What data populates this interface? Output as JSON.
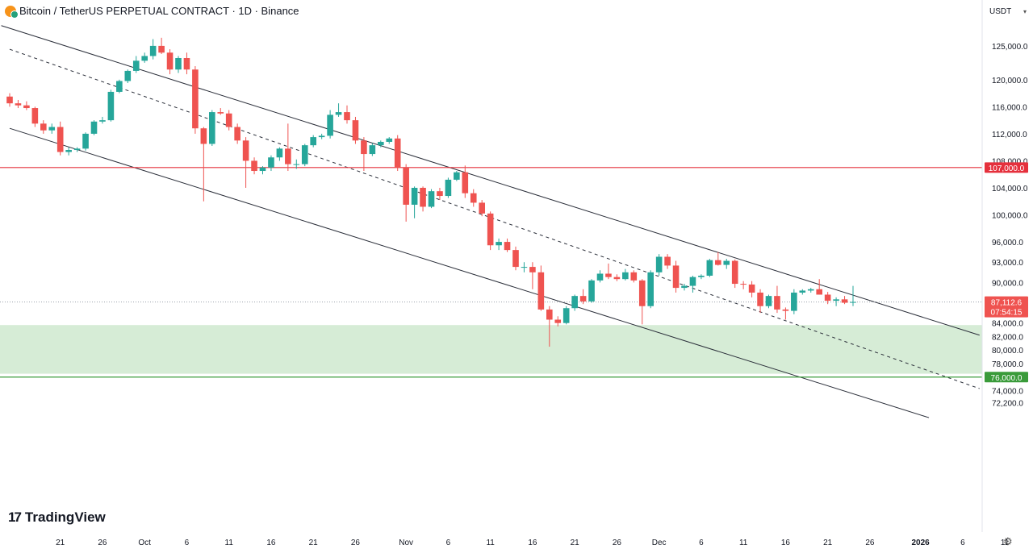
{
  "header": {
    "title": "Bitcoin / TetherUS PERPETUAL CONTRACT · 1D · Binance",
    "currency": "USDT",
    "logo_text": "TradingView"
  },
  "colors": {
    "up": "#26a69a",
    "down": "#ef5350",
    "resistance": "#e5303c",
    "support": "#3a9b3a",
    "zone": "#d6ecd6",
    "channel": "#2a2e39"
  },
  "chart_data": {
    "type": "candlestick",
    "ylim": [
      70000,
      128000
    ],
    "y_ticks": [
      "125,000.0",
      "120,000.0",
      "116,000.0",
      "112,000.0",
      "108,000.0",
      "104,000.0",
      "100,000.0",
      "96,000.0",
      "93,000.0",
      "90,000.0",
      "84,000.0",
      "82,000.0",
      "80,000.0",
      "78,000.0",
      "74,000.0",
      "72,200.0"
    ],
    "x_ticks": [
      "21",
      "26",
      "Oct",
      "6",
      "11",
      "16",
      "21",
      "26",
      "Nov",
      "6",
      "11",
      "16",
      "21",
      "26",
      "Dec",
      "6",
      "11",
      "16",
      "21",
      "26",
      "2026",
      "6",
      "11"
    ],
    "price_labels": {
      "resistance": "107,000.0",
      "support": "76,000.0",
      "last": "87,112.6",
      "countdown": "07:54:15"
    },
    "levels": {
      "resistance": 107000,
      "support": 76000,
      "last": 87112.6,
      "zone": [
        76500,
        83700
      ]
    },
    "channel": {
      "upper": [
        [
          "Sep 14",
          128000
        ],
        [
          "Jan 8",
          82200
        ]
      ],
      "middle": [
        [
          "Sep 15",
          124500
        ],
        [
          "Jan 8",
          74300
        ]
      ],
      "lower": [
        [
          "Sep 15",
          112800
        ],
        [
          "Jan 2",
          70000
        ]
      ]
    },
    "candles": [
      [
        "Sep 15",
        117500,
        118000,
        116000,
        116500
      ],
      [
        "Sep 16",
        116500,
        117000,
        115800,
        116200
      ],
      [
        "Sep 17",
        116200,
        116800,
        115500,
        115800
      ],
      [
        "Sep 18",
        115800,
        116000,
        113000,
        113500
      ],
      [
        "Sep 19",
        113500,
        114000,
        112000,
        112500
      ],
      [
        "Sep 20",
        112500,
        113500,
        112000,
        113000
      ],
      [
        "Sep 21",
        113000,
        113800,
        108800,
        109300
      ],
      [
        "Sep 22",
        109300,
        110000,
        108800,
        109600
      ],
      [
        "Sep 23",
        109600,
        110000,
        109300,
        109800
      ],
      [
        "Sep 24",
        109800,
        112200,
        109500,
        112000
      ],
      [
        "Sep 25",
        112000,
        114000,
        111800,
        113800
      ],
      [
        "Sep 26",
        113800,
        114500,
        113500,
        114000
      ],
      [
        "Sep 27",
        114000,
        118500,
        113800,
        118200
      ],
      [
        "Sep 28",
        118200,
        120000,
        118000,
        119800
      ],
      [
        "Sep 29",
        119800,
        121500,
        119500,
        121300
      ],
      [
        "Sep 30",
        121300,
        123500,
        121000,
        122800
      ],
      [
        "Oct 1",
        122800,
        124000,
        122500,
        123500
      ],
      [
        "Oct 2",
        123500,
        126000,
        123000,
        125000
      ],
      [
        "Oct 3",
        125000,
        126200,
        123800,
        124000
      ],
      [
        "Oct 4",
        124000,
        124500,
        120800,
        121500
      ],
      [
        "Oct 5",
        121500,
        123500,
        121000,
        123200
      ],
      [
        "Oct 6",
        123200,
        124000,
        120800,
        121500
      ],
      [
        "Oct 7",
        121500,
        122000,
        112000,
        112800
      ],
      [
        "Oct 8",
        112800,
        113000,
        102000,
        110500
      ],
      [
        "Oct 9",
        110500,
        115500,
        110200,
        115200
      ],
      [
        "Oct 10",
        115200,
        115800,
        114800,
        115000
      ],
      [
        "Oct 11",
        115000,
        115500,
        112500,
        113000
      ],
      [
        "Oct 12",
        113000,
        113500,
        110500,
        111000
      ],
      [
        "Oct 13",
        111000,
        111500,
        104000,
        108000
      ],
      [
        "Oct 14",
        108000,
        108500,
        106000,
        106500
      ],
      [
        "Oct 15",
        106500,
        107200,
        106000,
        107000
      ],
      [
        "Oct 16",
        107000,
        108800,
        106500,
        108500
      ],
      [
        "Oct 17",
        108500,
        110000,
        108000,
        109800
      ],
      [
        "Oct 18",
        109800,
        113500,
        106500,
        107500
      ],
      [
        "Oct 19",
        107500,
        108200,
        106800,
        107500
      ],
      [
        "Oct 20",
        107500,
        110500,
        107200,
        110300
      ],
      [
        "Oct 21",
        110300,
        111800,
        110000,
        111500
      ],
      [
        "Oct 22",
        111500,
        112000,
        111200,
        111700
      ],
      [
        "Oct 23",
        111700,
        115500,
        111300,
        114800
      ],
      [
        "Oct 24",
        114800,
        116500,
        114500,
        115200
      ],
      [
        "Oct 25",
        115200,
        116200,
        113500,
        114000
      ],
      [
        "Oct 26",
        114000,
        114500,
        110500,
        111000
      ],
      [
        "Oct 27",
        111000,
        111500,
        106500,
        109000
      ],
      [
        "Oct 28",
        109000,
        110600,
        108700,
        110300
      ],
      [
        "Oct 29",
        110300,
        111000,
        110000,
        110800
      ],
      [
        "Oct 30",
        110800,
        111500,
        110500,
        111300
      ],
      [
        "Oct 31",
        111300,
        111800,
        106500,
        107000
      ],
      [
        "Nov 1",
        107000,
        107500,
        99000,
        101500
      ],
      [
        "Nov 2",
        101500,
        104200,
        99500,
        104000
      ],
      [
        "Nov 3",
        104000,
        104200,
        100500,
        101200
      ],
      [
        "Nov 4",
        101200,
        103800,
        101000,
        103500
      ],
      [
        "Nov 5",
        103500,
        104000,
        102200,
        102800
      ],
      [
        "Nov 6",
        102800,
        105500,
        102500,
        105200
      ],
      [
        "Nov 7",
        105200,
        106500,
        105000,
        106300
      ],
      [
        "Nov 8",
        106300,
        107300,
        102500,
        103200
      ],
      [
        "Nov 9",
        103200,
        103800,
        101200,
        101800
      ],
      [
        "Nov 10",
        101800,
        102200,
        99800,
        100200
      ],
      [
        "Nov 11",
        100200,
        100500,
        94800,
        95500
      ],
      [
        "Nov 12",
        95500,
        96500,
        94800,
        96000
      ],
      [
        "Nov 13",
        96000,
        96500,
        94500,
        94800
      ],
      [
        "Nov 14",
        94800,
        95300,
        91800,
        92300
      ],
      [
        "Nov 15",
        92300,
        93000,
        91500,
        92300
      ],
      [
        "Nov 16",
        92300,
        93000,
        89000,
        91500
      ],
      [
        "Nov 17",
        91500,
        92500,
        85800,
        86000
      ],
      [
        "Nov 18",
        86000,
        86500,
        80500,
        84500
      ],
      [
        "Nov 19",
        84500,
        85000,
        83500,
        84000
      ],
      [
        "Nov 20",
        84000,
        86500,
        83800,
        86200
      ],
      [
        "Nov 21",
        86200,
        88200,
        85800,
        88000
      ],
      [
        "Nov 22",
        88000,
        89000,
        86800,
        87200
      ],
      [
        "Nov 23",
        87200,
        90500,
        87000,
        90300
      ],
      [
        "Nov 24",
        90300,
        91800,
        90000,
        91300
      ],
      [
        "Nov 25",
        91300,
        92800,
        90500,
        90800
      ],
      [
        "Nov 26",
        90800,
        91200,
        90200,
        90500
      ],
      [
        "Nov 27",
        90500,
        92000,
        90300,
        91500
      ],
      [
        "Nov 28",
        91500,
        91800,
        90000,
        90300
      ],
      [
        "Nov 29",
        90300,
        90500,
        83800,
        86500
      ],
      [
        "Nov 30",
        86500,
        91800,
        86200,
        91500
      ],
      [
        "Dec 1",
        91500,
        94200,
        91000,
        93800
      ],
      [
        "Dec 2",
        93800,
        94200,
        92000,
        92500
      ],
      [
        "Dec 3",
        92500,
        93200,
        88500,
        89200
      ],
      [
        "Dec 4",
        89200,
        89800,
        88800,
        89500
      ],
      [
        "Dec 5",
        89500,
        91000,
        88500,
        90800
      ],
      [
        "Dec 6",
        90800,
        91200,
        90500,
        91000
      ],
      [
        "Dec 7",
        91000,
        93500,
        90800,
        93300
      ],
      [
        "Dec 8",
        93300,
        94500,
        92500,
        92600
      ],
      [
        "Dec 9",
        92600,
        93500,
        92000,
        93200
      ],
      [
        "Dec 10",
        93200,
        93400,
        89200,
        89800
      ],
      [
        "Dec 11",
        89800,
        90200,
        89000,
        89700
      ],
      [
        "Dec 12",
        89700,
        90200,
        87800,
        88500
      ],
      [
        "Dec 13",
        88500,
        89000,
        85500,
        86500
      ],
      [
        "Dec 14",
        86500,
        88200,
        86200,
        88000
      ],
      [
        "Dec 15",
        88000,
        89500,
        85500,
        86000
      ],
      [
        "Dec 16",
        86000,
        86300,
        84500,
        85800
      ],
      [
        "Dec 17",
        85800,
        89000,
        85300,
        88500
      ],
      [
        "Dec 18",
        88500,
        89000,
        88200,
        88800
      ],
      [
        "Dec 19",
        88800,
        89200,
        88500,
        89000
      ],
      [
        "Dec 20",
        89000,
        90500,
        88200,
        88200
      ],
      [
        "Dec 21",
        88200,
        88600,
        86800,
        87300
      ],
      [
        "Dec 22",
        87300,
        87800,
        86500,
        87500
      ],
      [
        "Dec 23",
        87500,
        88000,
        86800,
        87000
      ],
      [
        "Dec 24",
        87000,
        89500,
        86500,
        87112.6
      ]
    ]
  }
}
